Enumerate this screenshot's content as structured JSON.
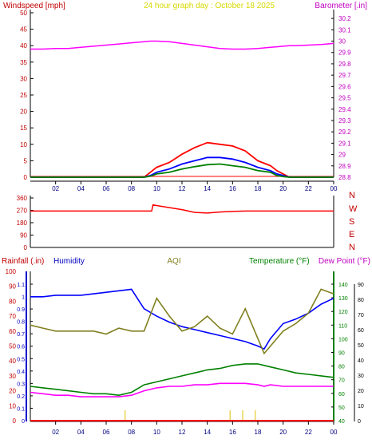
{
  "chart_data": [
    {
      "type": "line",
      "title": "24 hour graph day : October 18 2025",
      "left_label": "Windspeed [mph]",
      "right_label": "Barometer [.in]",
      "x_ticks": [
        "02",
        "04",
        "06",
        "08",
        "10",
        "12",
        "14",
        "16",
        "18",
        "20",
        "22",
        "00"
      ],
      "left_ticks": [
        0,
        5,
        10,
        15,
        20,
        25,
        30,
        35,
        40,
        45,
        50
      ],
      "right_ticks": [
        28.8,
        28.9,
        29,
        29.1,
        29.2,
        29.3,
        29.4,
        29.5,
        29.6,
        29.7,
        29.8,
        29.9,
        30,
        30.1,
        30.2
      ],
      "ylim_left": [
        0,
        50
      ],
      "ylim_right": [
        28.8,
        30.25
      ],
      "x": [
        0,
        1,
        2,
        3,
        4,
        5,
        6,
        7,
        8,
        9,
        9.5,
        10,
        11,
        12,
        13,
        14,
        15,
        16,
        17,
        18,
        19,
        19.5,
        20,
        20.5,
        21,
        22,
        23,
        24
      ],
      "series": [
        {
          "color": "#ff0000",
          "values": [
            0,
            0,
            0,
            0,
            0,
            0,
            0,
            0,
            0,
            0,
            1.5,
            3,
            4.5,
            7,
            9,
            10.5,
            10,
            9.5,
            8,
            5,
            3.5,
            2,
            1,
            0,
            0,
            0,
            0,
            0
          ]
        },
        {
          "color": "#0000ff",
          "values": [
            0,
            0,
            0,
            0,
            0,
            0,
            0,
            0,
            0,
            0,
            0.5,
            1.5,
            2.5,
            4,
            5,
            6,
            6,
            5.5,
            4.5,
            3,
            2,
            1,
            0.5,
            0,
            0,
            0,
            0,
            0
          ]
        },
        {
          "color": "#008000",
          "values": [
            0,
            0,
            0,
            0,
            0,
            0,
            0,
            0,
            0,
            0,
            0.3,
            1,
            1.5,
            2.5,
            3.2,
            3.8,
            4,
            3.5,
            3,
            2,
            1.5,
            0.5,
            0.2,
            0,
            0,
            0,
            0,
            0
          ]
        },
        {
          "color": "#ff00ff",
          "axis": "right",
          "values": [
            29.93,
            29.93,
            29.935,
            29.935,
            29.945,
            29.955,
            29.965,
            29.975,
            29.985,
            29.995,
            30,
            30,
            29.995,
            29.98,
            29.965,
            29.95,
            29.935,
            29.93,
            29.93,
            29.935,
            29.945,
            29.95,
            29.955,
            29.96,
            29.96,
            29.965,
            29.97,
            29.98
          ]
        }
      ]
    },
    {
      "type": "line",
      "y_ticks": [
        0,
        90,
        180,
        270,
        360
      ],
      "ylim": [
        0,
        360
      ],
      "direction_labels": [
        "N",
        "W",
        "S",
        "E",
        "N"
      ],
      "x": [
        0,
        2,
        4,
        6,
        8,
        9.6,
        9.7,
        10,
        11,
        12,
        13,
        14,
        15,
        16,
        17,
        18,
        20,
        22,
        24
      ],
      "series": [
        {
          "color": "#ff0000",
          "values": [
            265,
            265,
            265,
            265,
            265,
            265,
            310,
            305,
            290,
            275,
            255,
            250,
            258,
            262,
            265,
            265,
            265,
            265,
            265
          ]
        }
      ]
    },
    {
      "type": "line",
      "labels": {
        "rainfall": "Rainfall (.in)",
        "humidity": "Humidity",
        "aqi": "AQI",
        "temperature": "Temperature (°F)",
        "dewpoint": "Dew Point (°F)"
      },
      "x_ticks": [
        "02",
        "04",
        "06",
        "08",
        "10",
        "12",
        "14",
        "16",
        "18",
        "20",
        "22",
        "00"
      ],
      "humidity_ticks": [
        0,
        10,
        20,
        30,
        40,
        50,
        60,
        70,
        80,
        90,
        100
      ],
      "rainfall_ticks": [
        0,
        0.1,
        0.2,
        0.3,
        0.4,
        0.5,
        0.6,
        0.7,
        0.8,
        0.9,
        1,
        1.1
      ],
      "temp_ticks": [
        40,
        50,
        60,
        70,
        80,
        90,
        100,
        110,
        120,
        130,
        140
      ],
      "dew_ticks": [
        0,
        10,
        20,
        30,
        40,
        50,
        60,
        70,
        80,
        90
      ],
      "ylim_humidity": [
        0,
        100
      ],
      "x": [
        0,
        1,
        2,
        3,
        4,
        5,
        6,
        7,
        8,
        9,
        10,
        11,
        12,
        13,
        14,
        15,
        16,
        17,
        18,
        18.5,
        19,
        20,
        21,
        22,
        23,
        24
      ],
      "series": [
        {
          "name": "Humidity",
          "color": "#0000ff",
          "values": [
            83,
            83,
            84,
            84,
            84,
            85,
            86,
            87,
            88,
            75,
            70,
            66,
            63,
            61,
            59,
            57,
            55,
            53,
            50,
            48,
            55,
            65,
            68,
            72,
            78,
            82
          ]
        },
        {
          "name": "Temperature",
          "color": "#008000",
          "values": [
            23,
            22,
            21,
            20,
            19,
            18,
            18,
            17,
            19,
            24,
            26,
            28,
            30,
            32,
            34,
            35,
            37,
            38,
            38,
            37,
            36,
            34,
            32,
            31,
            30,
            29
          ]
        },
        {
          "name": "Dew Point",
          "color": "#ff00ff",
          "values": [
            19,
            18,
            17,
            17,
            16,
            16,
            16,
            16,
            17,
            20,
            22,
            23,
            23,
            24,
            24,
            25,
            25,
            25,
            24,
            23,
            24,
            23,
            23,
            23,
            23,
            23
          ]
        },
        {
          "name": "AQI",
          "color": "#808020",
          "values": [
            64,
            62,
            60,
            60,
            60,
            60,
            58,
            62,
            60,
            60,
            82,
            70,
            60,
            63,
            70,
            62,
            58,
            75,
            55,
            45,
            50,
            60,
            65,
            72,
            88,
            85
          ]
        },
        {
          "name": "Rainfall",
          "color": "#ff0000",
          "values": [
            0,
            0,
            0,
            0,
            0,
            0,
            0,
            0,
            0,
            0,
            0,
            0,
            0,
            0,
            0,
            0,
            0,
            0,
            0,
            0,
            0,
            0,
            0,
            0,
            0,
            0
          ]
        }
      ]
    }
  ]
}
